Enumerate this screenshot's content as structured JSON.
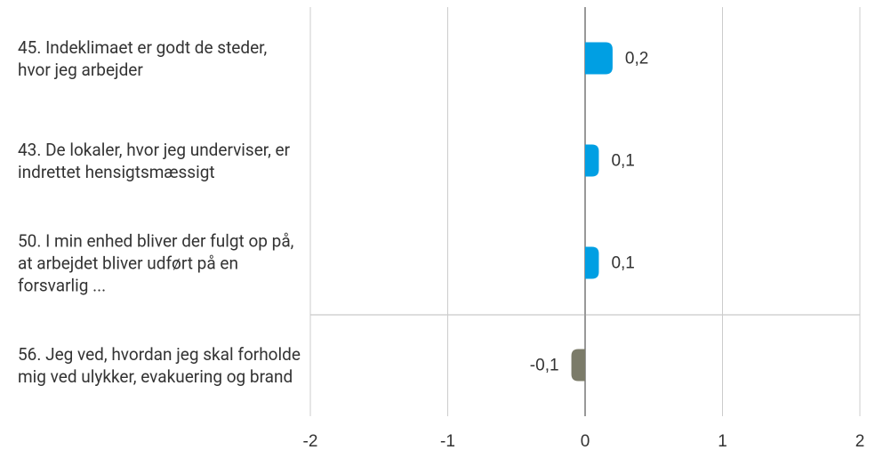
{
  "chart_data": {
    "type": "barh",
    "categories": [
      "45. Indeklimaet er godt de steder, hvor jeg arbejder",
      "43. De lokaler, hvor jeg underviser, er indrettet hensigtsmæssigt",
      "50. I min enhed bliver der fulgt op på, at arbejdet bliver udført på en forsvarlig ...",
      "56. Jeg ved, hvordan jeg skal forholde mig ved ulykker, evakuering og brand"
    ],
    "values": [
      0.2,
      0.1,
      0.1,
      -0.1
    ],
    "value_labels": [
      "0,2",
      "0,1",
      "0,1",
      "-0,1"
    ],
    "colors": [
      "#009fe3",
      "#009fe3",
      "#009fe3",
      "#7b7b69"
    ],
    "xlim": [
      -2,
      2
    ],
    "xticks": [
      -2,
      -1,
      0,
      1,
      2
    ],
    "grid": true
  }
}
